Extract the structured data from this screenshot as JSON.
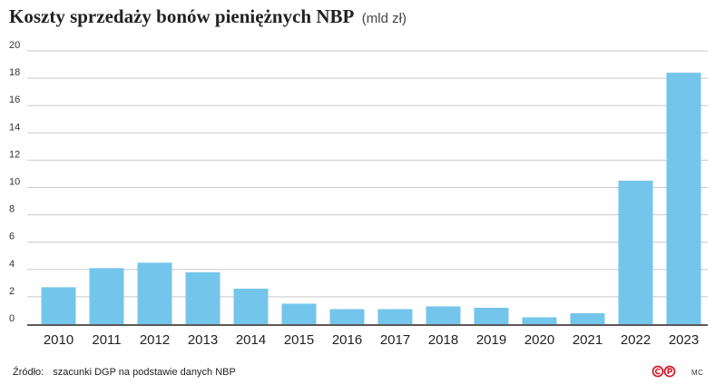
{
  "header": {
    "title": "Koszty sprzedaży bonów pieniężnych NBP",
    "unit": "(mld zł)"
  },
  "footer": {
    "source_label": "Źródło:",
    "source_text": "szacunki DGP na podstawie danych NBP",
    "logo_icon": "copyright-publisher-logo-icon",
    "author": "MC"
  },
  "colors": {
    "bar": "#74c5ec",
    "grid": "#c9c9c9",
    "axis": "#222222",
    "logo": "#d6202f"
  },
  "chart_data": {
    "type": "bar",
    "title": "Koszty sprzedaży bonów pieniężnych NBP",
    "ylabel": "mld zł",
    "xlabel": "",
    "categories": [
      "2010",
      "2011",
      "2012",
      "2013",
      "2014",
      "2015",
      "2016",
      "2017",
      "2018",
      "2019",
      "2020",
      "2021",
      "2022",
      "2023"
    ],
    "values": [
      2.7,
      4.1,
      4.5,
      3.8,
      2.6,
      1.5,
      1.1,
      1.1,
      1.3,
      1.2,
      0.5,
      0.8,
      10.5,
      18.4
    ],
    "ylim": [
      0,
      20
    ],
    "yticks": [
      0,
      2,
      4,
      6,
      8,
      10,
      12,
      14,
      16,
      18,
      20
    ],
    "grid": true
  }
}
